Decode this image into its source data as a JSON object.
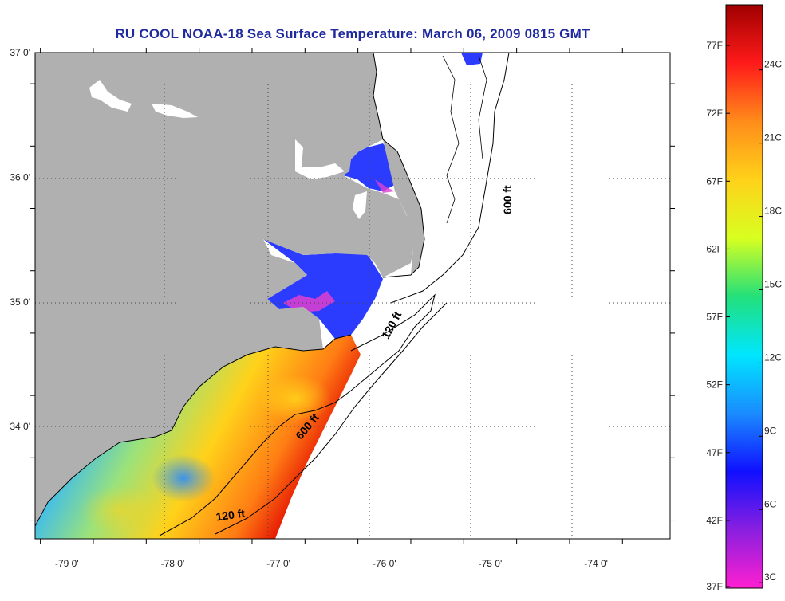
{
  "title": "RU COOL  NOAA-18  Sea Surface Temperature:  March 06, 2009 0815 GMT",
  "map": {
    "lat_range": [
      33.1,
      37.0
    ],
    "lon_range": [
      -79.3,
      -73.3
    ],
    "lat_ticks": [
      {
        "value": 37,
        "label": "37 0'"
      },
      {
        "value": 36,
        "label": "36 0'"
      },
      {
        "value": 35,
        "label": "35 0'"
      },
      {
        "value": 34,
        "label": "34 0'"
      }
    ],
    "lon_ticks": [
      {
        "value": -79,
        "label": "-79 0'"
      },
      {
        "value": -78,
        "label": "-78 0'"
      },
      {
        "value": -77,
        "label": "-77 0'"
      },
      {
        "value": -76,
        "label": "-76 0'"
      },
      {
        "value": -75,
        "label": "-75 0'"
      },
      {
        "value": -74,
        "label": "-74 0'"
      }
    ],
    "land_color": "#b0b0b0",
    "contours": [
      {
        "label": "600 ft",
        "lon": -74.8,
        "lat": 35.82,
        "angle": -90
      },
      {
        "label": "120 ft",
        "lon": -75.9,
        "lat": 34.8,
        "angle": -62
      },
      {
        "label": "600 ft",
        "lon": -76.7,
        "lat": 33.98,
        "angle": -50
      },
      {
        "label": "120 ft",
        "lon": -77.45,
        "lat": 33.26,
        "angle": -8
      }
    ]
  },
  "colorbar": {
    "f_labels": [
      {
        "value": 77,
        "label": "77F"
      },
      {
        "value": 72,
        "label": "72F"
      },
      {
        "value": 67,
        "label": "67F"
      },
      {
        "value": 62,
        "label": "62F"
      },
      {
        "value": 57,
        "label": "57F"
      },
      {
        "value": 52,
        "label": "52F"
      },
      {
        "value": 47,
        "label": "47F"
      },
      {
        "value": 42,
        "label": "42F"
      },
      {
        "value": 37,
        "label": "37F"
      }
    ],
    "c_labels": [
      {
        "value": 24,
        "label": "24C"
      },
      {
        "value": 21,
        "label": "21C"
      },
      {
        "value": 18,
        "label": "18C"
      },
      {
        "value": 15,
        "label": "15C"
      },
      {
        "value": 12,
        "label": "12C"
      },
      {
        "value": 9,
        "label": "9C"
      },
      {
        "value": 6,
        "label": "6C"
      },
      {
        "value": 3,
        "label": "3C"
      }
    ],
    "range_f": [
      37,
      80
    ],
    "colors": [
      "#ff1fd0",
      "#8a1fe0",
      "#1010ff",
      "#1a8cff",
      "#00e6ff",
      "#22e07a",
      "#d8ff20",
      "#ffd21a",
      "#ff8c1a",
      "#ff1a1a",
      "#a00000"
    ]
  }
}
